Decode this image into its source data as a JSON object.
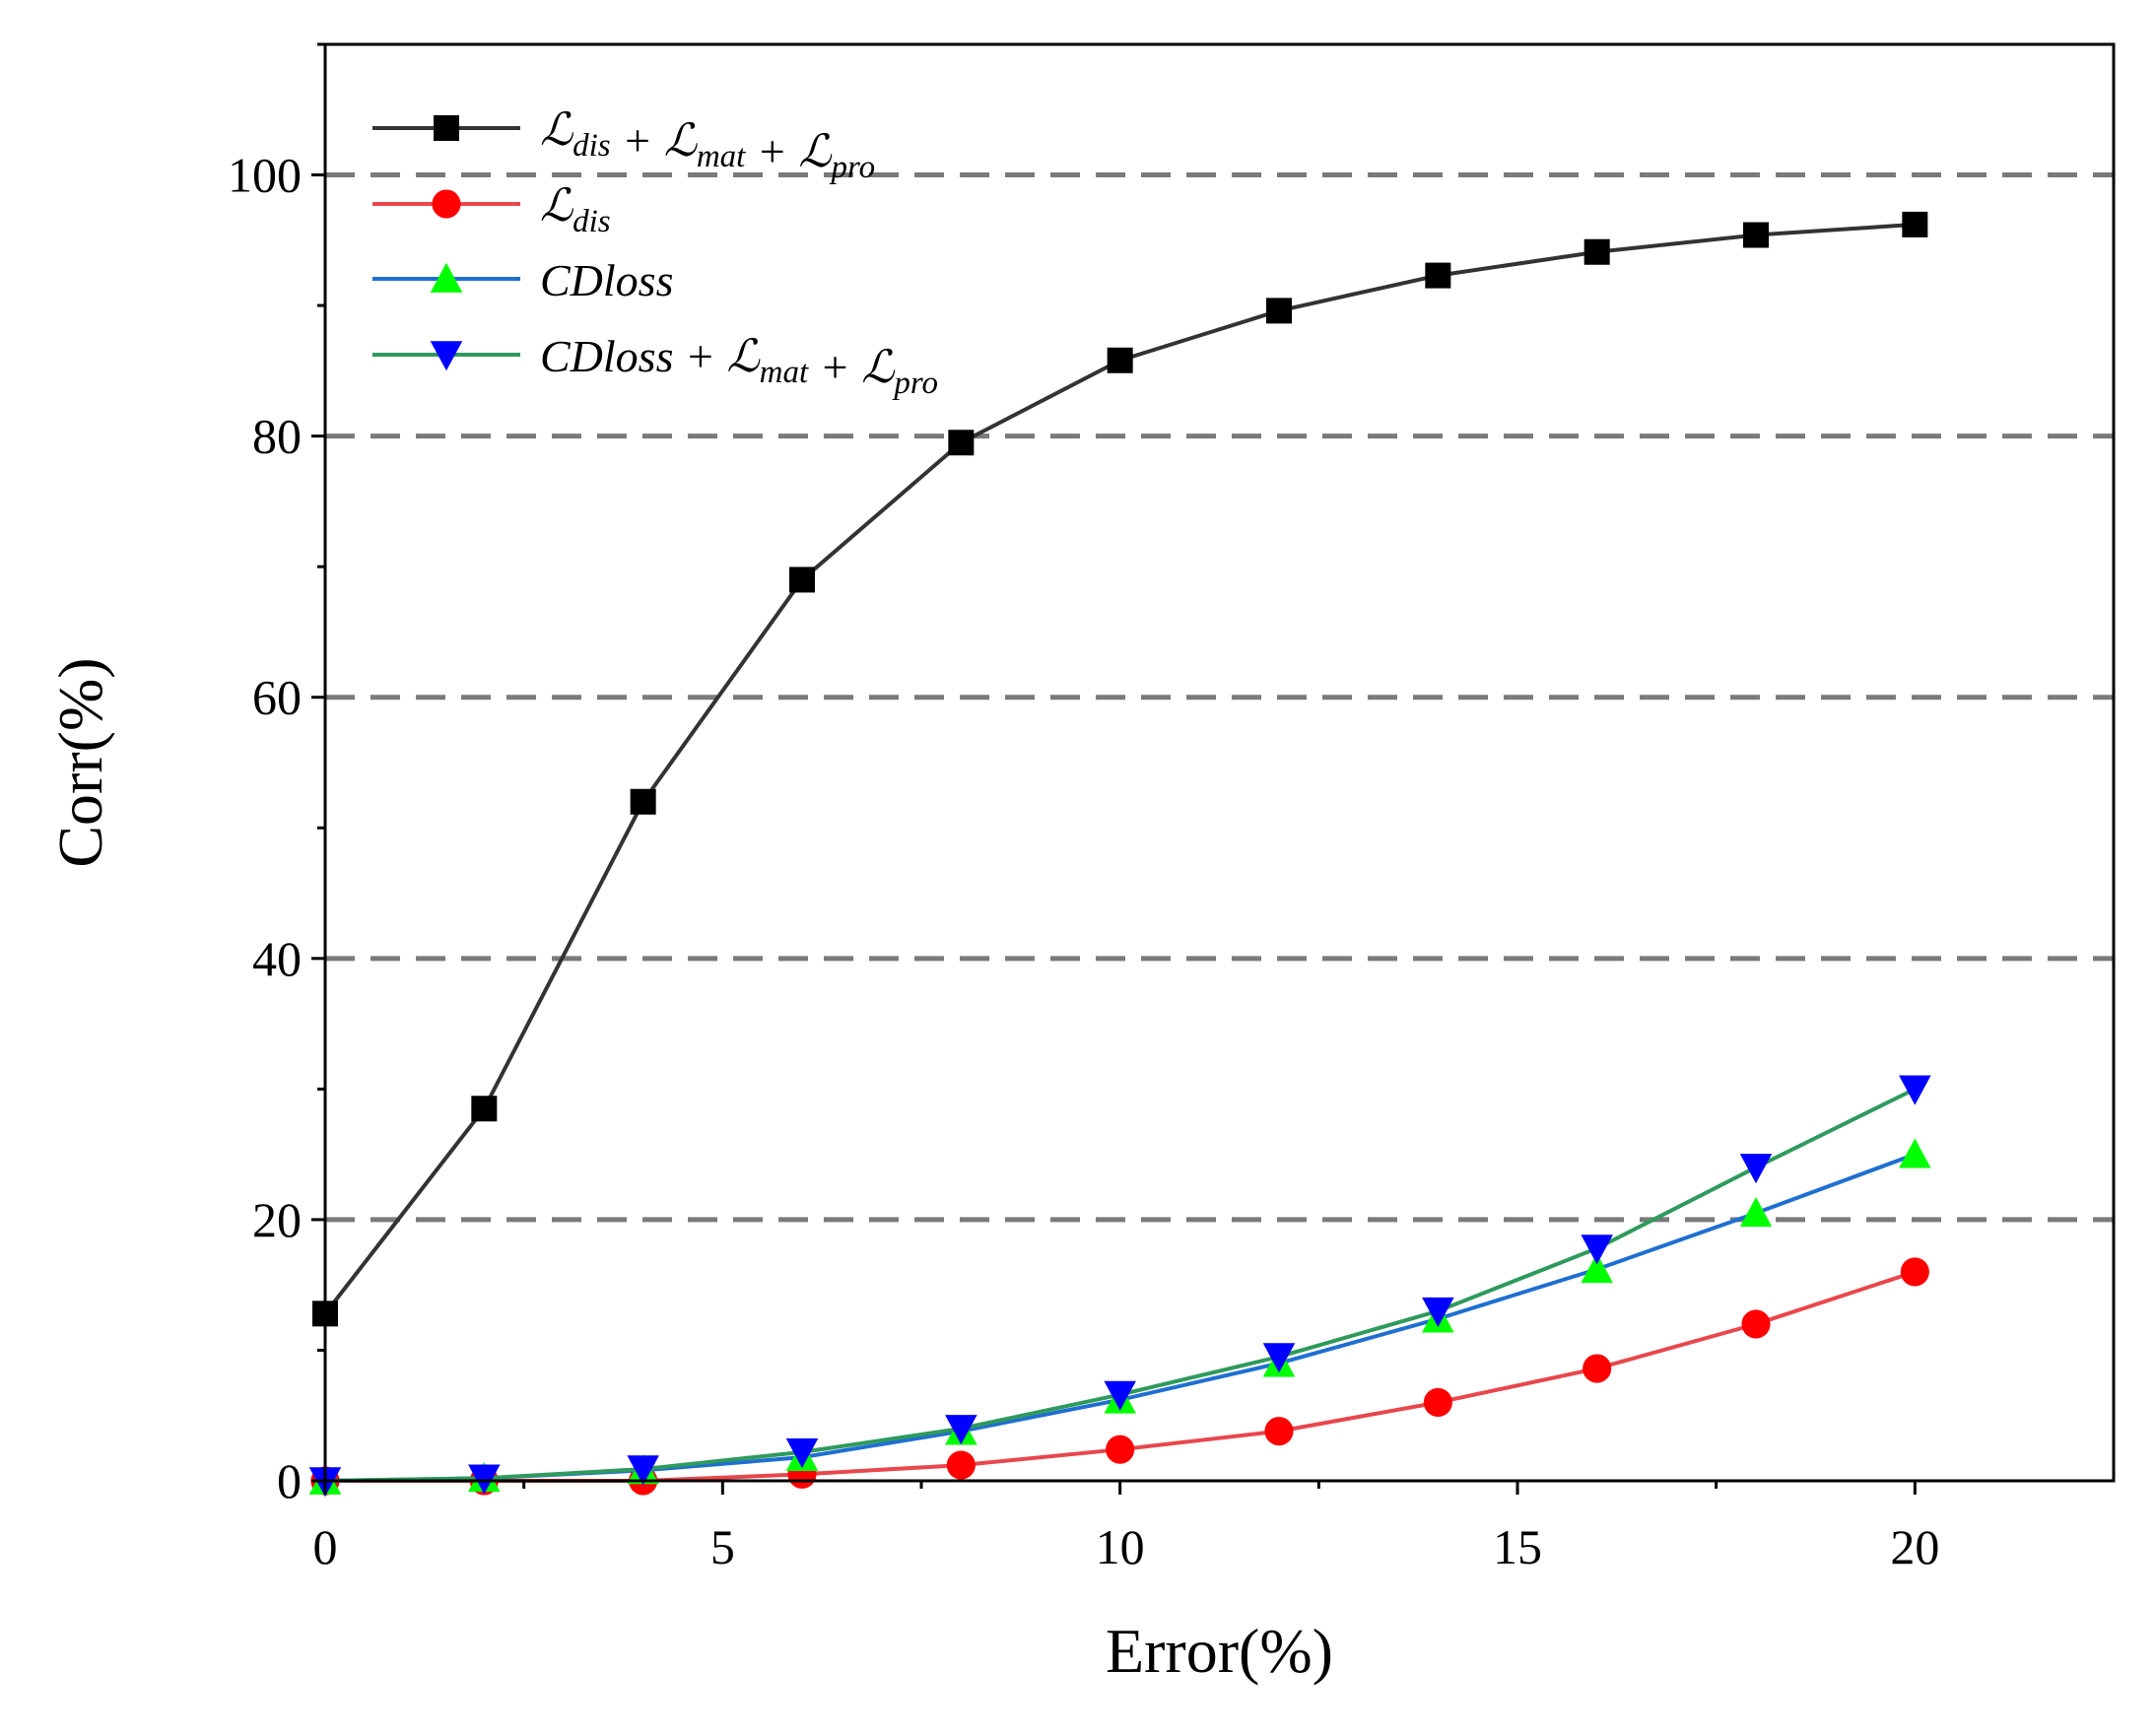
{
  "chart_data": {
    "type": "line",
    "title": "",
    "xlabel": "Error(%)",
    "ylabel": "Corr(%)",
    "xlim": [
      0,
      22.5
    ],
    "ylim": [
      0,
      110
    ],
    "xticks": [
      0,
      5,
      10,
      15,
      20
    ],
    "yticks": [
      0,
      20,
      40,
      60,
      80,
      100
    ],
    "grid": "horizontal dashed at y = 20, 40, 60, 80, 100",
    "legend_position": "top-left",
    "x": [
      0,
      2,
      4,
      6,
      8,
      10,
      12,
      14,
      16,
      18,
      20
    ],
    "series": [
      {
        "name": "Ldis + Lmat + Lpro",
        "legend_parts": [
          {
            "t": "ℒ",
            "sub": "dis"
          },
          {
            "t": " + "
          },
          {
            "t": "ℒ",
            "sub": "mat"
          },
          {
            "t": " + "
          },
          {
            "t": "ℒ",
            "sub": "pro"
          }
        ],
        "values": [
          12.8,
          28.5,
          52.0,
          69.0,
          79.5,
          85.8,
          89.6,
          92.3,
          94.1,
          95.4,
          96.2
        ],
        "line_color": "#333333",
        "marker": "square",
        "marker_color": "#000000"
      },
      {
        "name": "Ldis",
        "legend_parts": [
          {
            "t": "ℒ",
            "sub": "dis"
          }
        ],
        "values": [
          0.0,
          0.0,
          0.0,
          0.5,
          1.2,
          2.4,
          3.8,
          6.0,
          8.6,
          12.0,
          16.0
        ],
        "line_color": "#e8474c",
        "marker": "circle",
        "marker_color": "#ff0000"
      },
      {
        "name": "CDloss",
        "legend_parts": [
          {
            "t": "CDloss"
          }
        ],
        "values": [
          0.0,
          0.2,
          0.8,
          1.8,
          3.8,
          6.2,
          9.0,
          12.4,
          16.2,
          20.5,
          25.0
        ],
        "line_color": "#1f6fd1",
        "marker": "triangle-up",
        "marker_color": "#00ff00"
      },
      {
        "name": "CDloss + Lmat + Lpro",
        "legend_parts": [
          {
            "t": "CDloss + "
          },
          {
            "t": "ℒ",
            "sub": "mat"
          },
          {
            "t": " + "
          },
          {
            "t": "ℒ",
            "sub": "pro"
          }
        ],
        "values": [
          0.0,
          0.2,
          0.9,
          2.2,
          4.0,
          6.6,
          9.5,
          13.0,
          17.8,
          24.0,
          30.0
        ],
        "line_color": "#2e9a5c",
        "marker": "triangle-down",
        "marker_color": "#0000ff"
      }
    ]
  }
}
